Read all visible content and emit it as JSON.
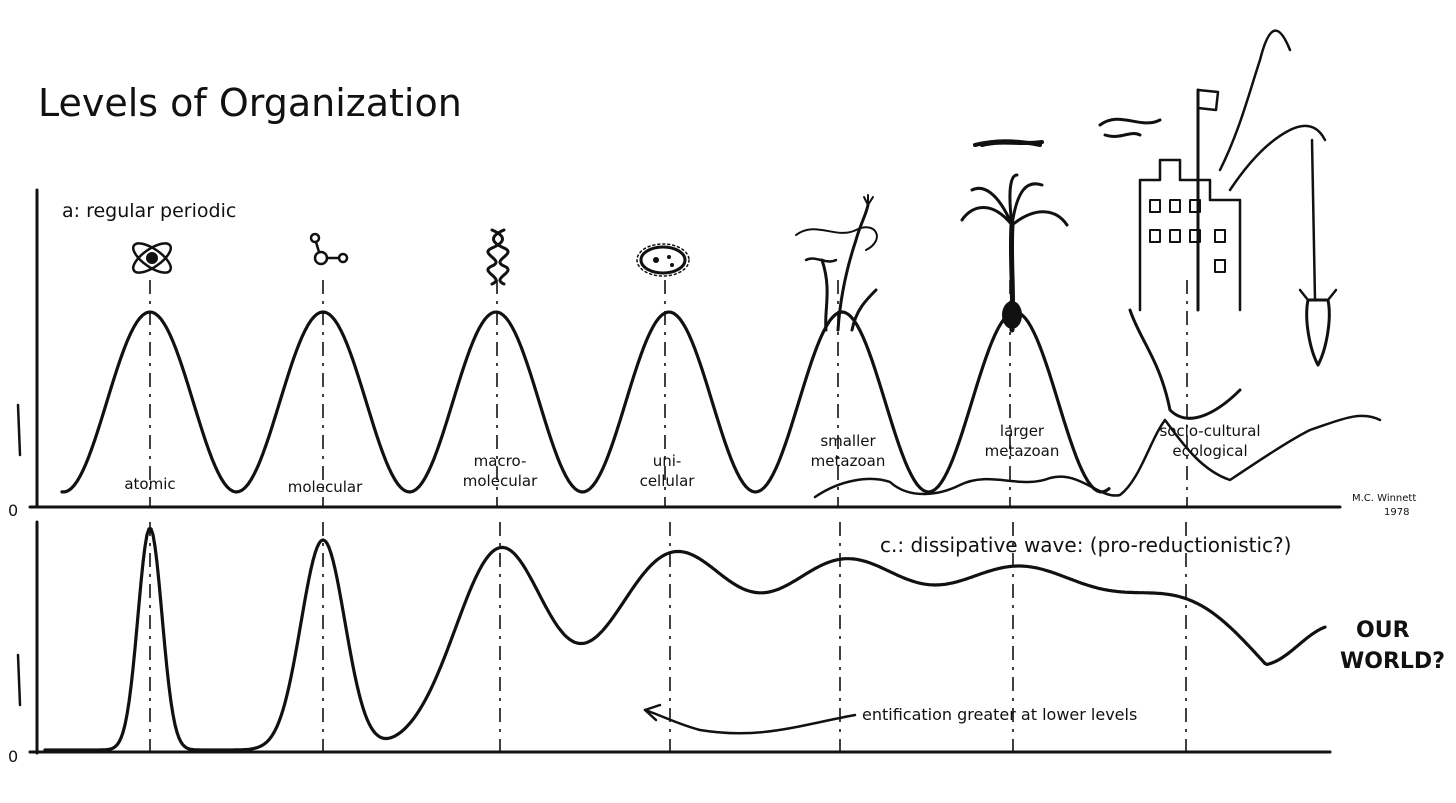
{
  "title": "Levels of Organization",
  "panel_a": {
    "label": "a: regular periodic",
    "zero_label": "0",
    "levels": [
      {
        "lines": [
          "atomic"
        ],
        "icon": "atom-icon"
      },
      {
        "lines": [
          "molecular"
        ],
        "icon": "molecule-icon"
      },
      {
        "lines": [
          "macro-",
          "molecular"
        ],
        "icon": "helix-icon"
      },
      {
        "lines": [
          "uni-",
          "cellular"
        ],
        "icon": "cell-icon"
      },
      {
        "lines": [
          "smaller",
          "metazoan"
        ],
        "icon": "seaweed-icon"
      },
      {
        "lines": [
          "larger",
          "metazoan"
        ],
        "icon": "palm-tree-icon"
      },
      {
        "lines": [
          "socio-cultural",
          "ecological"
        ],
        "icon": "city-icon"
      }
    ],
    "signature": [
      "M.C. Winnett",
      "1978"
    ]
  },
  "panel_c": {
    "label": "c.: dissipative wave: (pro-reductionistic?)",
    "zero_label": "0",
    "end_label": [
      "OUR",
      "WORLD?"
    ],
    "annotation": "entification greater at lower levels"
  },
  "colors": {
    "ink": "#111111",
    "paper": "#ffffff"
  }
}
